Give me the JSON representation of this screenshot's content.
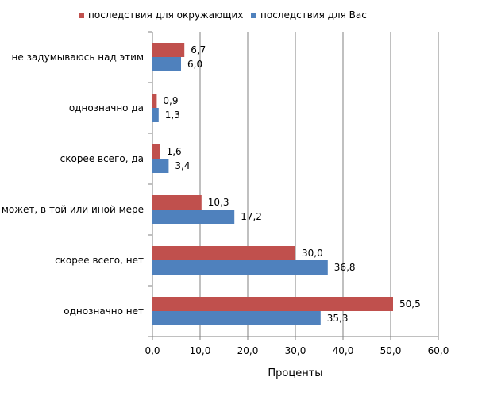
{
  "chart_data": {
    "type": "bar",
    "orientation": "horizontal",
    "categories": [
      "не задумываюсь над этим",
      "однозначно да",
      "скорее всего, да",
      "может, в той или иной мере",
      "скорее всего, нет",
      "однозначно нет"
    ],
    "series": [
      {
        "name": "последствия для окружающих",
        "color": "#C0504D",
        "values": [
          6.7,
          0.9,
          1.6,
          10.3,
          30.0,
          50.5
        ],
        "labels": [
          "6,7",
          "0,9",
          "1,6",
          "10,3",
          "30,0",
          "50,5"
        ]
      },
      {
        "name": "последствия для Вас",
        "color": "#4F81BD",
        "values": [
          6.0,
          1.3,
          3.4,
          17.2,
          36.8,
          35.3
        ],
        "labels": [
          "6,0",
          "1,3",
          "3,4",
          "17,2",
          "36,8",
          "35,3"
        ]
      }
    ],
    "xlabel": "Проценты",
    "ylabel": "",
    "xlim": [
      0,
      60
    ],
    "xticks": [
      0,
      10,
      20,
      30,
      40,
      50,
      60
    ],
    "xtick_labels": [
      "0,0",
      "10,0",
      "20,0",
      "30,0",
      "40,0",
      "50,0",
      "60,0"
    ],
    "grid": "vertical",
    "legend": "top"
  }
}
